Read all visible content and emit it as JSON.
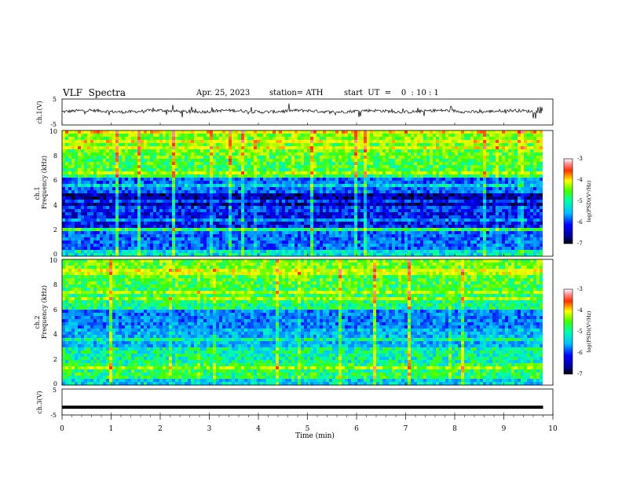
{
  "header": {
    "title": "VLF  Spectra",
    "date": "Apr. 25, 2023",
    "station": "station= ATH",
    "start": "start  UT  =    0  : 10 : 1"
  },
  "chart_data": [
    {
      "type": "line",
      "ylabel": "ch.1(V)",
      "yticks": [
        "5",
        "-5"
      ],
      "ylim": [
        -5,
        5
      ],
      "description_level": 0.3
    },
    {
      "type": "heatmap",
      "ylabel_1": "ch.1",
      "ylabel_2": "Frequency (kHz)",
      "yticks": [
        "0",
        "2",
        "4",
        "6",
        "8",
        "10"
      ],
      "ylim": [
        0,
        10
      ],
      "colorbar": {
        "label": "log(PSD)(V²/Hz)",
        "ticks": [
          "-3",
          "-4",
          "-5",
          "-6",
          "-7"
        ],
        "range": [
          -7,
          -3
        ]
      }
    },
    {
      "type": "heatmap",
      "ylabel_1": "ch.2",
      "ylabel_2": "Frequency (kHz)",
      "yticks": [
        "0",
        "2",
        "4",
        "6",
        "8",
        "10"
      ],
      "ylim": [
        0,
        10
      ],
      "colorbar": {
        "label": "log(PSD)(V²/Hz)",
        "ticks": [
          "-3",
          "-4",
          "-5",
          "-6",
          "-7"
        ],
        "range": [
          -7,
          -3
        ]
      }
    },
    {
      "type": "line",
      "ylabel": "ch.3(V)",
      "yticks": [
        "5",
        "-5"
      ],
      "ylim": [
        -5,
        5
      ],
      "level": -2
    }
  ],
  "xaxis": {
    "label": "Time  (min)",
    "ticks": [
      "0",
      "1",
      "2",
      "3",
      "4",
      "5",
      "6",
      "7",
      "8",
      "9",
      "10"
    ],
    "range": [
      0,
      10
    ],
    "data_end": 9.8
  }
}
